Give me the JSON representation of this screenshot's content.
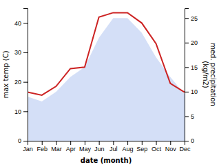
{
  "chart_data": {
    "type": "line",
    "xlabel": "date (month)",
    "ylabel": "max temp (C)",
    "y2label": "med. precipitation\n(kg/m2)",
    "categories": [
      "Jan",
      "Feb",
      "Mar",
      "Apr",
      "May",
      "Jun",
      "Jul",
      "Aug",
      "Sep",
      "Oct",
      "Nov",
      "Dec"
    ],
    "series": [
      {
        "type": "area",
        "axis": "y2",
        "color": "#b0c4f0",
        "values": [
          9.0,
          8.0,
          10.0,
          13.0,
          15.0,
          21.0,
          25.0,
          25.0,
          22.0,
          17.0,
          13.0,
          9.5
        ]
      },
      {
        "type": "line",
        "color": "#cc2222",
        "values": [
          16.5,
          15.5,
          18.5,
          24.5,
          25.0,
          42.0,
          43.5,
          43.5,
          40.0,
          33.0,
          19.5,
          16.5
        ]
      }
    ],
    "ylim": [
      0,
      45
    ],
    "yticks": [
      0,
      10,
      20,
      30,
      40
    ],
    "y2lim": [
      0,
      27
    ],
    "y2ticks": [
      0,
      5,
      10,
      15,
      20,
      25
    ]
  }
}
